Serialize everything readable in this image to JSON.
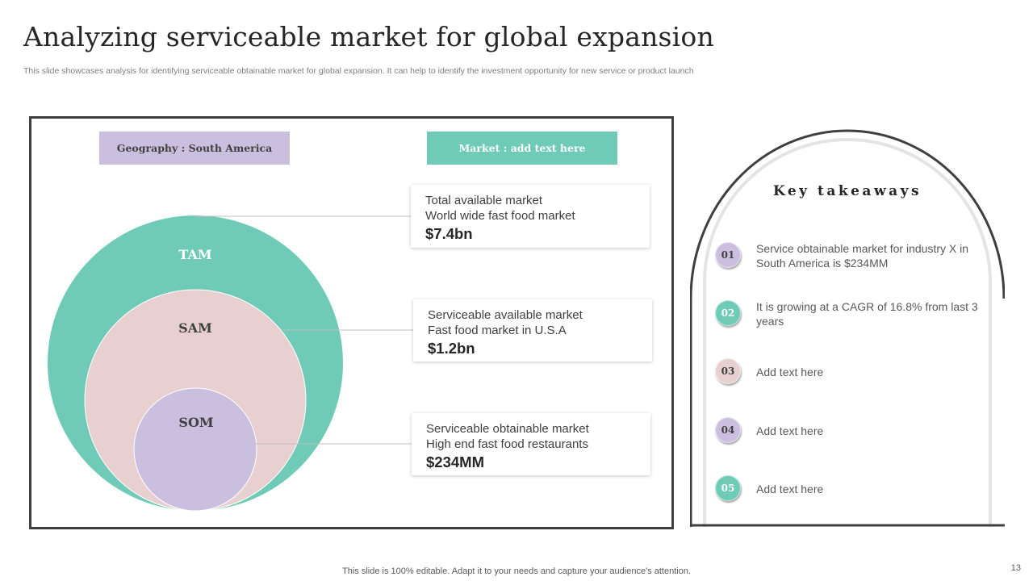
{
  "title": "Analyzing serviceable market for global expansion",
  "subtitle": "This slide showcases analysis for identifying serviceable obtainable market for global expansion. It can help to identify the investment opportunity for new service or product launch",
  "chips": {
    "geography": "Geography : South America",
    "market": "Market : add text here"
  },
  "colors": {
    "tam": "#6fcbb7",
    "sam": "#e8d0d0",
    "som": "#cbbfe0"
  },
  "circles": {
    "tam": "TAM",
    "sam": "SAM",
    "som": "SOM"
  },
  "cards": [
    {
      "line1": "Total available market",
      "line2": "World wide fast food market",
      "value": "$7.4bn"
    },
    {
      "line1": "Serviceable available market",
      "line2": "Fast food market in U.S.A",
      "value": "$1.2bn"
    },
    {
      "line1": "Serviceable obtainable market",
      "line2": "High end fast food restaurants",
      "value": "$234MM"
    }
  ],
  "takeaways": {
    "title": "Key takeaways",
    "items": [
      {
        "num": "01",
        "text": "Service obtainable market for industry X in South America is $234MM",
        "color": "#cbbfe0"
      },
      {
        "num": "02",
        "text": "It is growing at a CAGR of 16.8% from last 3 years",
        "color": "#6fcbb7"
      },
      {
        "num": "03",
        "text": "Add text here",
        "color": "#e8d0d0"
      },
      {
        "num": "04",
        "text": "Add text here",
        "color": "#cbbfe0"
      },
      {
        "num": "05",
        "text": "Add text here",
        "color": "#6fcbb7"
      }
    ]
  },
  "footer": "This slide is 100% editable. Adapt it to your needs and capture your audience's attention.",
  "page_number": "13"
}
